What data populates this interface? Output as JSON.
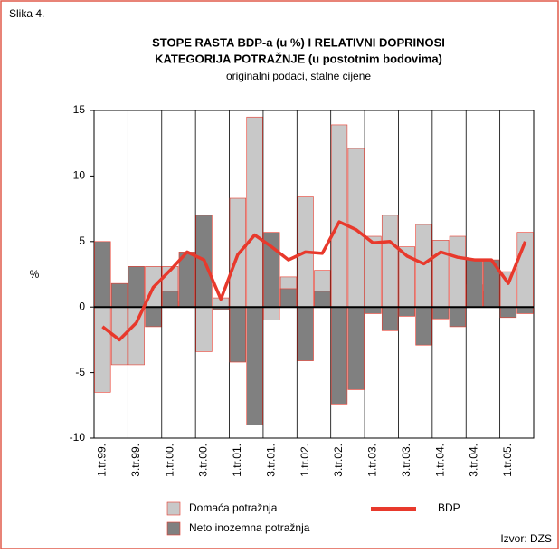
{
  "figure_label": "Slika 4.",
  "source": "Izvor: DZS",
  "chart_data": {
    "type": "bar",
    "title": "STOPE RASTA BDP-a (u %) I RELATIVNI DOPRINOSI",
    "title_line2": "KATEGORIJA POTRAŽNJE (u postotnim bodovima)",
    "subtitle": "originalni podaci, stalne cijene",
    "y_label": "%",
    "categories": [
      "1.tr.99.",
      null,
      "3.tr.99.",
      null,
      "1.tr.00.",
      null,
      "3.tr.00.",
      null,
      "1.tr.01.",
      null,
      "3.tr.01.",
      null,
      "1.tr.02.",
      null,
      "3.tr.02.",
      null,
      "1.tr.03.",
      null,
      "3.tr.03.",
      null,
      "1.tr.04.",
      null,
      "3.tr.04.",
      null,
      "1.tr.05.",
      null
    ],
    "series": [
      {
        "name": "Domaća potražnja",
        "color": "#c8c8c8",
        "values": [
          -6.5,
          -4.4,
          -4.4,
          3.1,
          3.1,
          0.4,
          -3.4,
          0.7,
          8.3,
          14.5,
          -1.0,
          2.3,
          8.4,
          2.8,
          13.9,
          12.1,
          5.4,
          7.0,
          4.6,
          6.3,
          5.1,
          5.4,
          1.7,
          1.2,
          2.7,
          5.7
        ]
      },
      {
        "name": "Neto inozemna potražnja",
        "color": "#808080",
        "values": [
          5.0,
          1.8,
          3.1,
          -1.5,
          1.2,
          4.2,
          7.0,
          -0.2,
          -4.2,
          -9.0,
          5.7,
          1.4,
          -4.1,
          1.2,
          -7.4,
          -6.3,
          -0.5,
          -1.8,
          -0.7,
          -2.9,
          -0.9,
          -1.5,
          3.6,
          3.6,
          -0.8,
          -0.5
        ]
      },
      {
        "name": "BDP",
        "type": "line",
        "color": "#e8392c",
        "values": [
          -1.5,
          -2.5,
          -1.2,
          1.5,
          2.8,
          4.2,
          3.6,
          0.6,
          4.0,
          5.5,
          4.6,
          3.6,
          4.2,
          4.1,
          6.5,
          5.9,
          4.9,
          5.0,
          3.9,
          3.3,
          4.2,
          3.8,
          3.6,
          3.6,
          1.8,
          5.0
        ]
      }
    ],
    "ylim": [
      -10,
      15
    ],
    "yticks": [
      -10,
      -5,
      0,
      5,
      10,
      15
    ]
  }
}
